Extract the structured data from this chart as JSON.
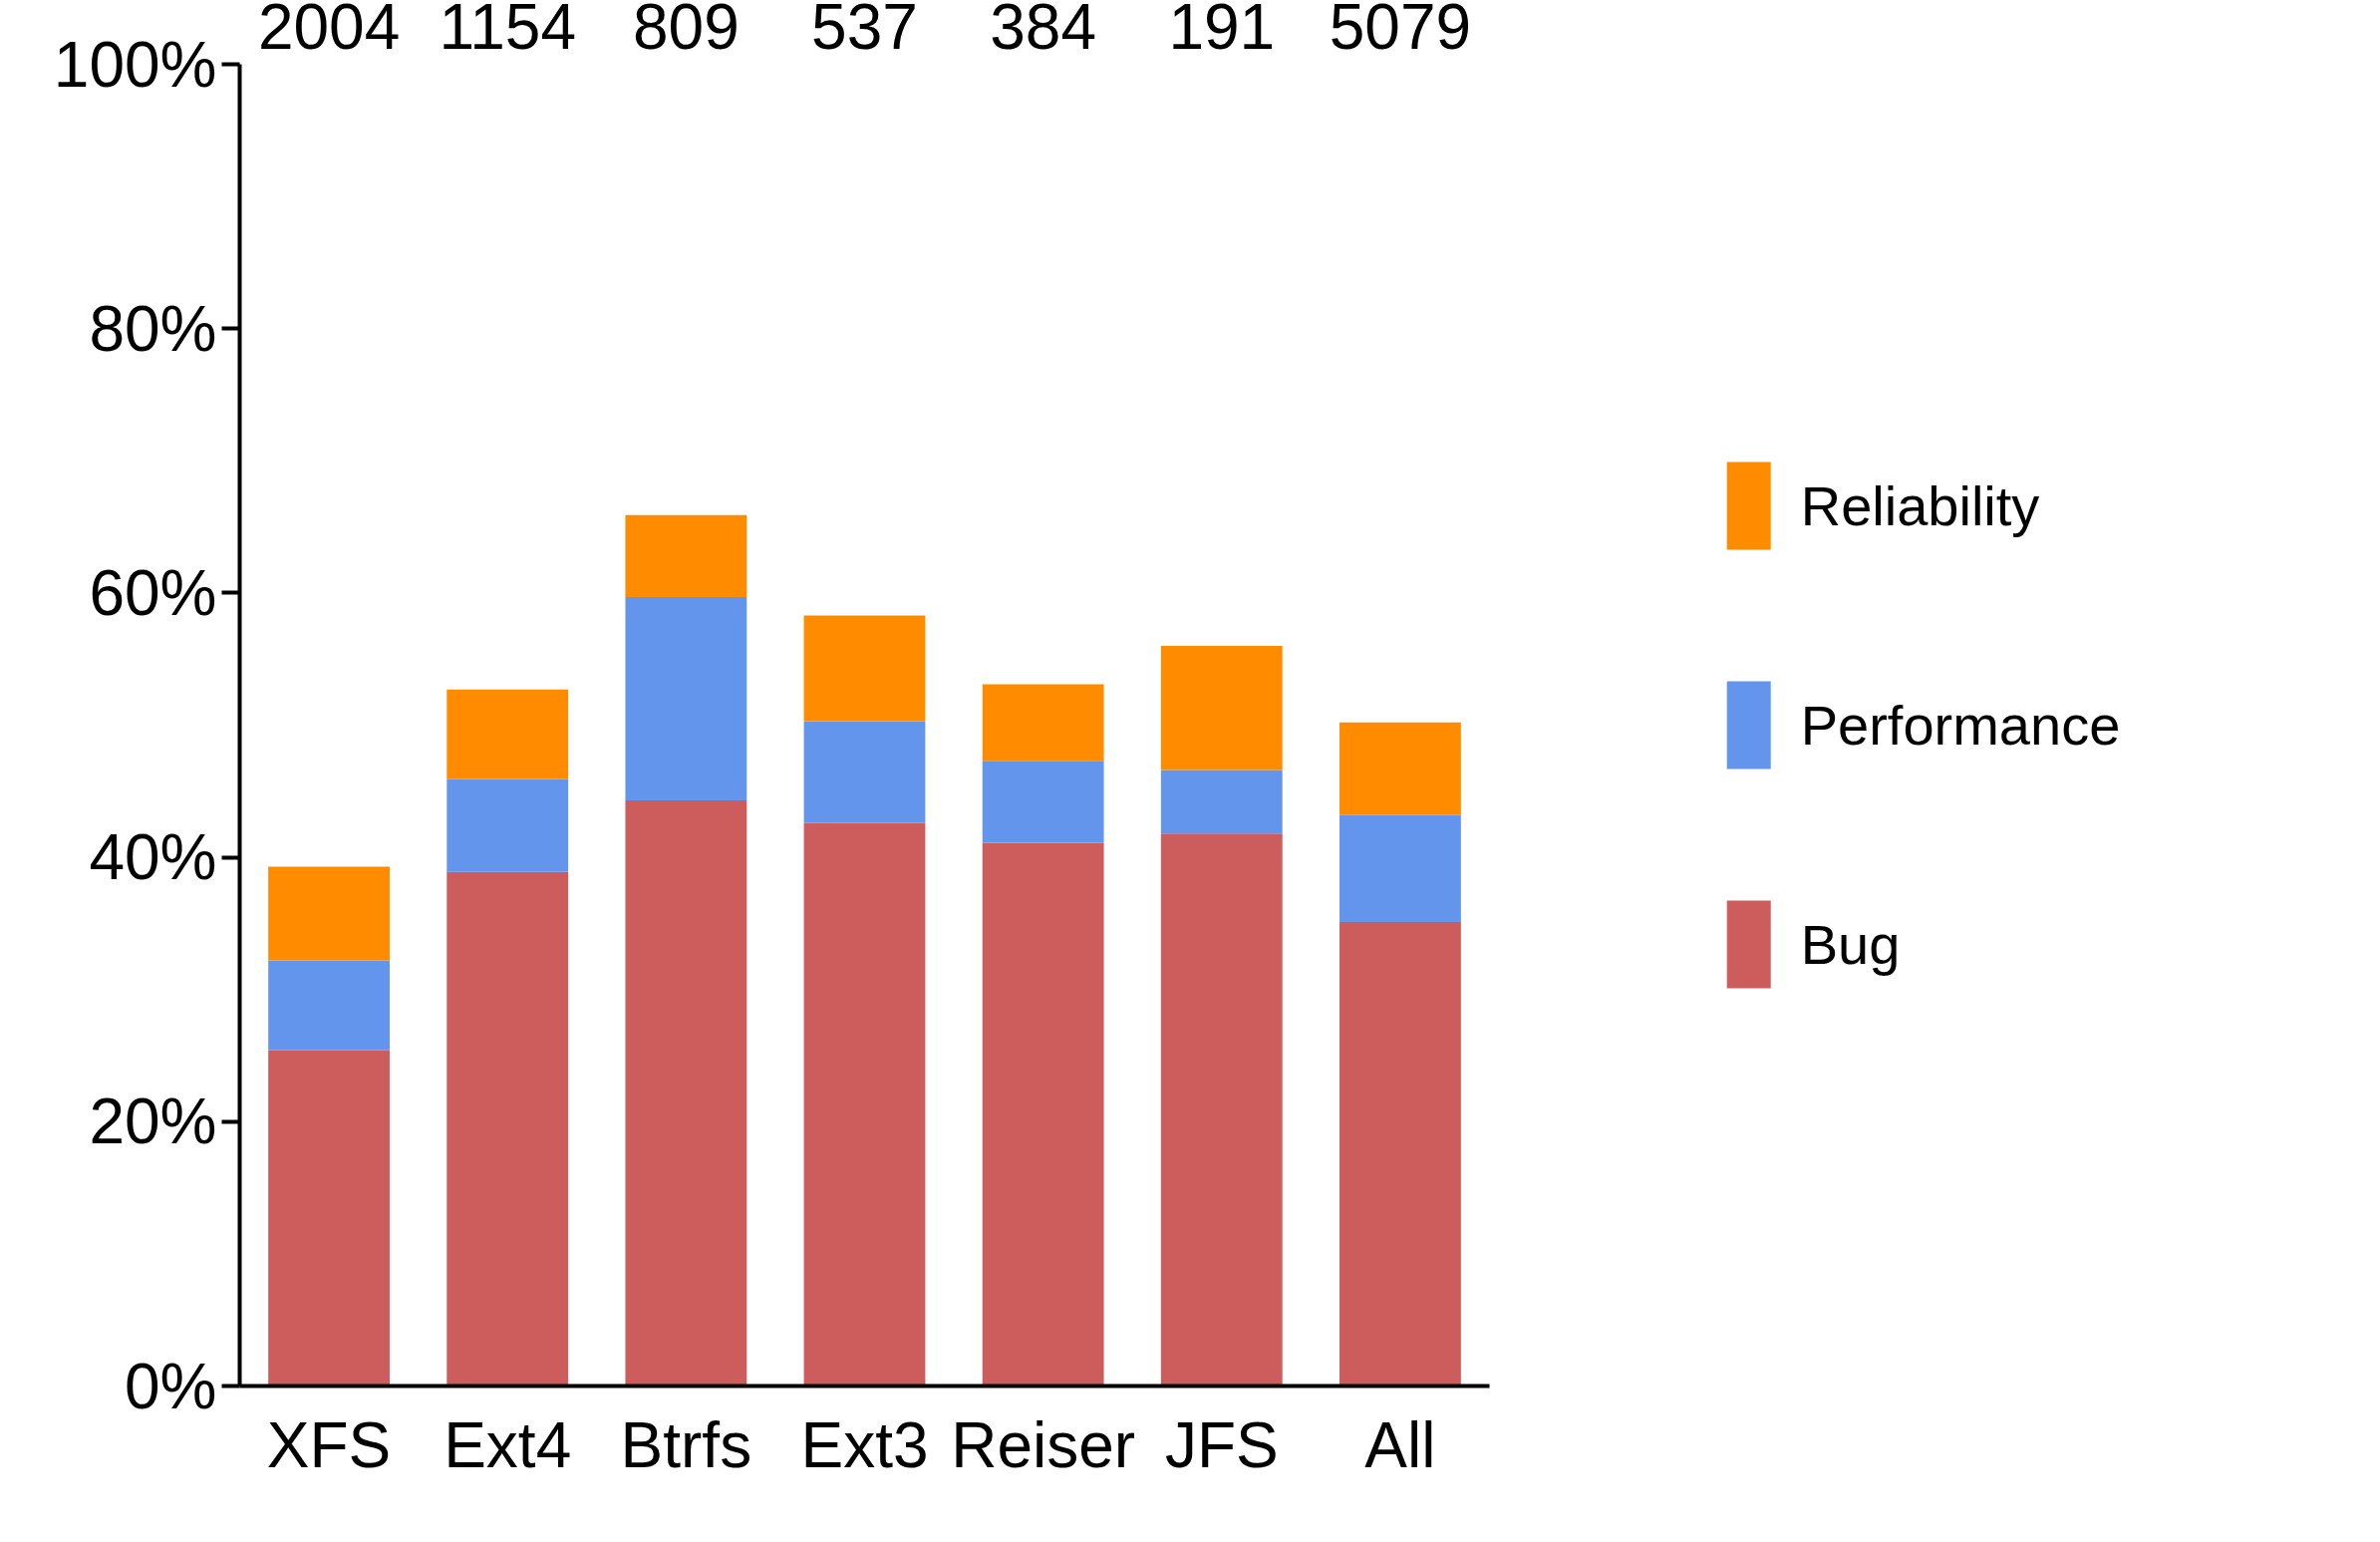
{
  "chart_data": {
    "type": "bar",
    "stacked": true,
    "categories": [
      "XFS",
      "Ext4",
      "Btrfs",
      "Ext3",
      "Reiser",
      "JFS",
      "All"
    ],
    "series": [
      {
        "name": "Bug",
        "color": "#cd5c5c",
        "values": [
          25.4,
          38.9,
          44.3,
          42.6,
          41.1,
          41.8,
          35.1
        ]
      },
      {
        "name": "Performance",
        "color": "#6495ed",
        "values": [
          6.8,
          7.0,
          15.4,
          7.7,
          6.2,
          4.8,
          8.1
        ]
      },
      {
        "name": "Reliability",
        "color": "#ff8c00",
        "values": [
          7.1,
          6.8,
          6.2,
          8.0,
          5.8,
          9.4,
          7.0
        ]
      }
    ],
    "ylim": [
      0,
      100
    ],
    "yticks": [
      {
        "value": 0,
        "label": "0%"
      },
      {
        "value": 20,
        "label": "20%"
      },
      {
        "value": 40,
        "label": "40%"
      },
      {
        "value": 60,
        "label": "60%"
      },
      {
        "value": 80,
        "label": "80%"
      },
      {
        "value": 100,
        "label": "100%"
      }
    ],
    "annotations": [
      "2004",
      "1154",
      "809",
      "537",
      "384",
      "191",
      "5079"
    ],
    "grid": false,
    "legend": "right"
  }
}
